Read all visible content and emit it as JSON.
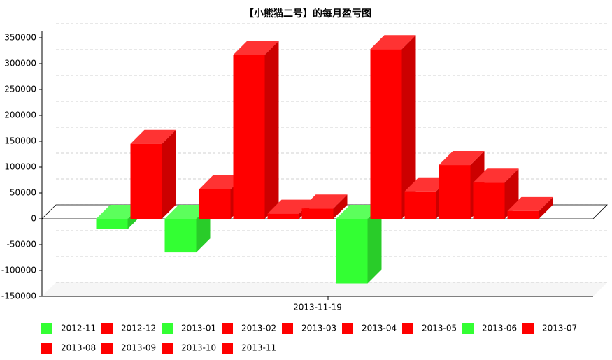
{
  "chart_data": {
    "type": "bar3d",
    "title": "【小熊猫二号】的每月盈亏图",
    "categories": [
      "2013-11-19"
    ],
    "ylim": [
      -150000,
      350000
    ],
    "yticks": [
      -150000,
      -100000,
      -50000,
      0,
      50000,
      100000,
      150000,
      200000,
      250000,
      300000,
      350000
    ],
    "grid": true,
    "legend": "bottom",
    "series": [
      {
        "name": "2012-11",
        "color": "#33ff33",
        "values": [
          -20000
        ]
      },
      {
        "name": "2012-12",
        "color": "#ff0000",
        "values": [
          145000
        ]
      },
      {
        "name": "2013-01",
        "color": "#33ff33",
        "values": [
          -65000
        ]
      },
      {
        "name": "2013-02",
        "color": "#ff0000",
        "values": [
          57000
        ]
      },
      {
        "name": "2013-03",
        "color": "#ff0000",
        "values": [
          317000
        ]
      },
      {
        "name": "2013-04",
        "color": "#ff0000",
        "values": [
          10000
        ]
      },
      {
        "name": "2013-05",
        "color": "#ff0000",
        "values": [
          20000
        ]
      },
      {
        "name": "2013-06",
        "color": "#33ff33",
        "values": [
          -125000
        ]
      },
      {
        "name": "2013-07",
        "color": "#ff0000",
        "values": [
          328000
        ]
      },
      {
        "name": "2013-08",
        "color": "#ff0000",
        "values": [
          53000
        ]
      },
      {
        "name": "2013-09",
        "color": "#ff0000",
        "values": [
          104000
        ]
      },
      {
        "name": "2013-10",
        "color": "#ff0000",
        "values": [
          70000
        ]
      },
      {
        "name": "2013-11",
        "color": "#ff0000",
        "values": [
          15000
        ]
      }
    ]
  }
}
